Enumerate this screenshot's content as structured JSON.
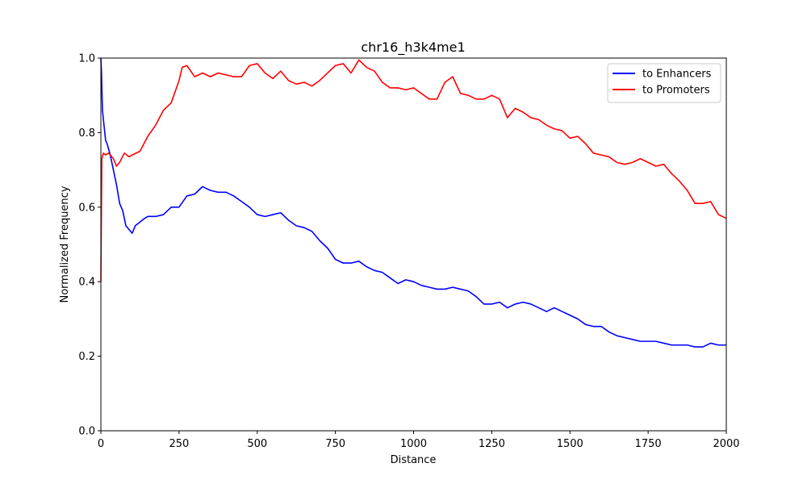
{
  "chart_data": {
    "type": "line",
    "title": "chr16_h3k4me1",
    "xlabel": "Distance",
    "ylabel": "Normalized Frequency",
    "xlim": [
      0,
      2000
    ],
    "ylim": [
      0,
      1.0
    ],
    "xticks": [
      0,
      250,
      500,
      750,
      1000,
      1250,
      1500,
      1750,
      2000
    ],
    "yticks": [
      0.0,
      0.2,
      0.4,
      0.6,
      0.8,
      1.0
    ],
    "xtick_labels": [
      "0",
      "250",
      "500",
      "750",
      "1000",
      "1250",
      "1500",
      "1750",
      "2000"
    ],
    "ytick_labels": [
      "0.0",
      "0.2",
      "0.4",
      "0.6",
      "0.8",
      "1.0"
    ],
    "grid": false,
    "legend": "top-right",
    "series": [
      {
        "name": "to Enhancers",
        "color": "#0000ff",
        "x": [
          0,
          2,
          5,
          10,
          15,
          20,
          30,
          40,
          50,
          60,
          70,
          80,
          90,
          100,
          110,
          125,
          140,
          150,
          175,
          200,
          225,
          250,
          275,
          300,
          325,
          350,
          375,
          400,
          425,
          450,
          475,
          500,
          525,
          550,
          575,
          600,
          625,
          650,
          675,
          700,
          725,
          750,
          775,
          800,
          825,
          850,
          875,
          900,
          925,
          950,
          975,
          1000,
          1025,
          1050,
          1075,
          1100,
          1125,
          1150,
          1175,
          1200,
          1225,
          1250,
          1275,
          1300,
          1325,
          1350,
          1375,
          1400,
          1425,
          1450,
          1475,
          1500,
          1525,
          1550,
          1575,
          1600,
          1625,
          1650,
          1675,
          1700,
          1725,
          1750,
          1775,
          1800,
          1825,
          1850,
          1875,
          1900,
          1925,
          1950,
          1975,
          2000
        ],
        "y": [
          1.0,
          0.96,
          0.86,
          0.82,
          0.78,
          0.77,
          0.74,
          0.7,
          0.66,
          0.61,
          0.59,
          0.55,
          0.54,
          0.53,
          0.55,
          0.56,
          0.57,
          0.575,
          0.575,
          0.58,
          0.6,
          0.6,
          0.63,
          0.635,
          0.655,
          0.645,
          0.64,
          0.64,
          0.63,
          0.615,
          0.6,
          0.58,
          0.575,
          0.58,
          0.585,
          0.565,
          0.55,
          0.545,
          0.535,
          0.51,
          0.49,
          0.46,
          0.45,
          0.45,
          0.455,
          0.44,
          0.43,
          0.425,
          0.41,
          0.395,
          0.405,
          0.4,
          0.39,
          0.385,
          0.38,
          0.38,
          0.385,
          0.38,
          0.375,
          0.36,
          0.34,
          0.34,
          0.345,
          0.33,
          0.34,
          0.345,
          0.34,
          0.33,
          0.32,
          0.33,
          0.32,
          0.31,
          0.3,
          0.285,
          0.28,
          0.28,
          0.265,
          0.255,
          0.25,
          0.245,
          0.24,
          0.24,
          0.24,
          0.235,
          0.23,
          0.23,
          0.23,
          0.225,
          0.225,
          0.235,
          0.23,
          0.23
        ]
      },
      {
        "name": "to Promoters",
        "color": "#ff0000",
        "x": [
          0,
          3,
          8,
          15,
          25,
          40,
          50,
          60,
          75,
          90,
          100,
          125,
          150,
          175,
          200,
          225,
          250,
          260,
          275,
          300,
          325,
          350,
          375,
          400,
          425,
          450,
          475,
          500,
          525,
          550,
          575,
          600,
          625,
          650,
          675,
          700,
          725,
          750,
          775,
          800,
          825,
          850,
          875,
          900,
          925,
          950,
          975,
          1000,
          1025,
          1050,
          1075,
          1100,
          1125,
          1150,
          1175,
          1200,
          1225,
          1250,
          1275,
          1300,
          1325,
          1350,
          1375,
          1400,
          1425,
          1450,
          1475,
          1500,
          1525,
          1550,
          1575,
          1600,
          1625,
          1650,
          1675,
          1700,
          1725,
          1750,
          1775,
          1800,
          1825,
          1850,
          1875,
          1900,
          1925,
          1950,
          1975,
          2000
        ],
        "y": [
          0.4,
          0.73,
          0.745,
          0.74,
          0.745,
          0.73,
          0.71,
          0.72,
          0.745,
          0.735,
          0.74,
          0.75,
          0.79,
          0.82,
          0.86,
          0.88,
          0.94,
          0.975,
          0.98,
          0.95,
          0.96,
          0.95,
          0.96,
          0.955,
          0.95,
          0.95,
          0.98,
          0.985,
          0.96,
          0.945,
          0.965,
          0.94,
          0.93,
          0.935,
          0.925,
          0.94,
          0.96,
          0.98,
          0.985,
          0.96,
          0.995,
          0.975,
          0.965,
          0.935,
          0.92,
          0.92,
          0.915,
          0.92,
          0.905,
          0.89,
          0.89,
          0.935,
          0.95,
          0.905,
          0.9,
          0.89,
          0.89,
          0.9,
          0.89,
          0.84,
          0.865,
          0.855,
          0.84,
          0.835,
          0.82,
          0.81,
          0.805,
          0.785,
          0.79,
          0.77,
          0.745,
          0.74,
          0.735,
          0.72,
          0.715,
          0.72,
          0.73,
          0.72,
          0.71,
          0.715,
          0.69,
          0.67,
          0.645,
          0.61,
          0.61,
          0.615,
          0.58,
          0.57
        ]
      }
    ]
  }
}
